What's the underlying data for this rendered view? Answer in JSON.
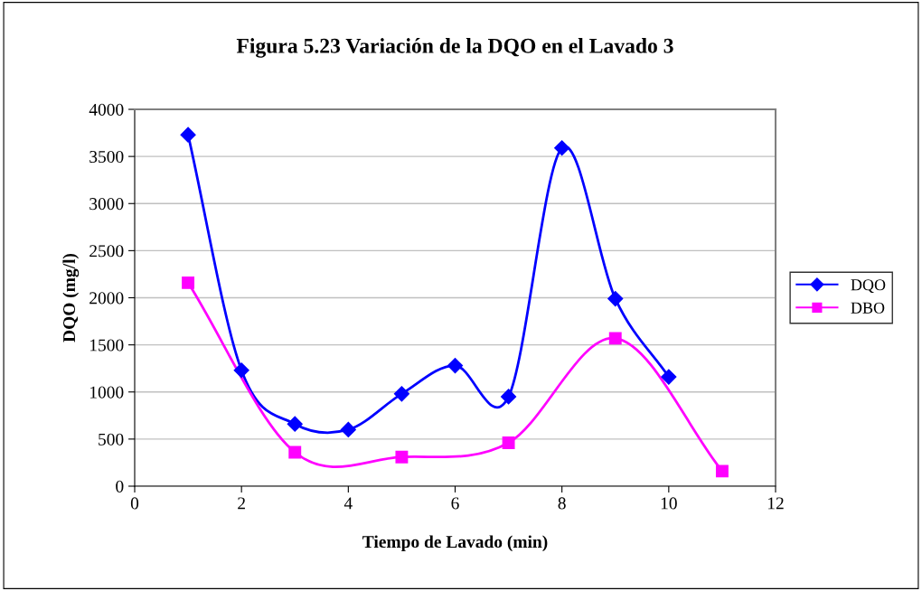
{
  "chart_data": {
    "type": "line",
    "title": "Figura 5.23 Variación de la DQO en el Lavado 3",
    "xlabel": "Tiempo de Lavado (min)",
    "ylabel": "DQO (mg/l)",
    "xlim": [
      0,
      12
    ],
    "xticks": [
      0,
      2,
      4,
      6,
      8,
      10,
      12
    ],
    "ylim": [
      0,
      4000
    ],
    "yticks": [
      0,
      500,
      1000,
      1500,
      2000,
      2500,
      3000,
      3500,
      4000
    ],
    "grid": "y",
    "legend": "right",
    "line_style": "solid",
    "series": [
      {
        "name": "DQO",
        "color": "#0000ff",
        "marker": "diamond",
        "x": [
          1,
          2,
          3,
          4,
          5,
          6,
          7,
          8,
          9,
          10
        ],
        "values": [
          3730,
          1230,
          660,
          600,
          980,
          1280,
          950,
          3590,
          1990,
          1160
        ]
      },
      {
        "name": "DBO",
        "color": "#ff00ff",
        "marker": "square",
        "x": [
          1,
          3,
          5,
          7,
          9,
          11
        ],
        "values": [
          2160,
          360,
          310,
          460,
          1570,
          160
        ]
      }
    ]
  }
}
